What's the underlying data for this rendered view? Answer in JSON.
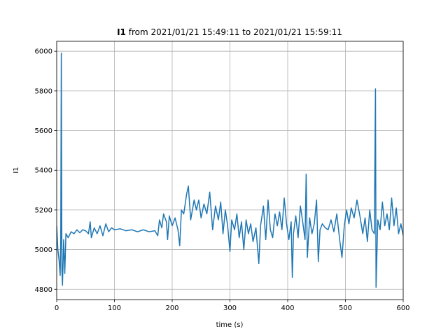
{
  "chart_data": {
    "type": "line",
    "title_bold": "I1",
    "title": "from 2021/01/21 15:49:11 to 2021/01/21 15:59:11",
    "xlabel": "time (s)",
    "ylabel": "I1",
    "xlim": [
      0,
      600
    ],
    "ylim": [
      4748,
      6050
    ],
    "xticks": [
      0,
      100,
      200,
      300,
      400,
      500,
      600
    ],
    "yticks": [
      4800,
      5000,
      5200,
      5400,
      5600,
      5800,
      6000
    ],
    "grid": true,
    "series": [
      {
        "color": "#1f77b4",
        "x": [
          0,
          2,
          4,
          6,
          7,
          8,
          9,
          10,
          12,
          14,
          16,
          20,
          25,
          30,
          35,
          40,
          45,
          50,
          55,
          58,
          60,
          65,
          70,
          75,
          80,
          85,
          90,
          95,
          100,
          110,
          120,
          130,
          140,
          150,
          160,
          170,
          175,
          178,
          182,
          185,
          190,
          192,
          195,
          200,
          205,
          210,
          213,
          216,
          220,
          225,
          228,
          232,
          238,
          242,
          246,
          250,
          255,
          260,
          265,
          270,
          275,
          280,
          284,
          288,
          292,
          296,
          300,
          303,
          308,
          312,
          316,
          320,
          324,
          328,
          332,
          336,
          340,
          345,
          350,
          353,
          358,
          362,
          366,
          370,
          374,
          378,
          382,
          386,
          390,
          394,
          398,
          402,
          406,
          408,
          410,
          414,
          418,
          422,
          426,
          430,
          432,
          434,
          438,
          442,
          446,
          450,
          453,
          456,
          460,
          465,
          470,
          475,
          480,
          485,
          490,
          494,
          498,
          502,
          506,
          510,
          515,
          520,
          525,
          530,
          534,
          538,
          542,
          546,
          550,
          552,
          553,
          556,
          560,
          564,
          568,
          572,
          576,
          580,
          584,
          588,
          592,
          596,
          600
        ],
        "values": [
          5120,
          5000,
          4950,
          4870,
          5050,
          5990,
          4900,
          4820,
          5050,
          4880,
          5080,
          5060,
          5090,
          5080,
          5100,
          5085,
          5100,
          5095,
          5080,
          5140,
          5060,
          5110,
          5080,
          5120,
          5070,
          5130,
          5090,
          5110,
          5100,
          5105,
          5095,
          5100,
          5090,
          5100,
          5090,
          5095,
          5070,
          5150,
          5110,
          5180,
          5140,
          5050,
          5170,
          5120,
          5160,
          5100,
          5020,
          5200,
          5180,
          5280,
          5320,
          5150,
          5250,
          5200,
          5250,
          5160,
          5230,
          5180,
          5290,
          5100,
          5220,
          5150,
          5240,
          5080,
          5200,
          5120,
          4990,
          5150,
          5100,
          5180,
          5060,
          5140,
          5000,
          5150,
          5080,
          5130,
          5040,
          5110,
          4930,
          5120,
          5220,
          5050,
          5250,
          5100,
          5060,
          5180,
          5120,
          5190,
          5100,
          5260,
          5130,
          5050,
          5140,
          4860,
          5080,
          5170,
          5060,
          5220,
          5140,
          5050,
          5380,
          4960,
          5160,
          5080,
          5130,
          5250,
          4940,
          5100,
          5130,
          5110,
          5100,
          5150,
          5090,
          5180,
          5050,
          4960,
          5120,
          5200,
          5130,
          5210,
          5160,
          5250,
          5170,
          5080,
          5160,
          5040,
          5200,
          5100,
          5080,
          5810,
          4810,
          5150,
          5100,
          5240,
          5120,
          5180,
          5100,
          5260,
          5120,
          5210,
          5080,
          5130,
          5070
        ]
      }
    ]
  }
}
